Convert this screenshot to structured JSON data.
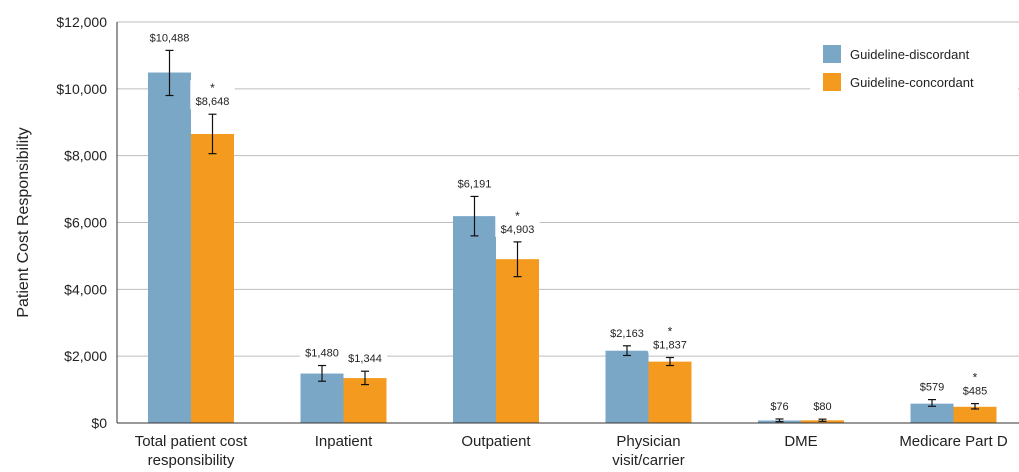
{
  "chart_data": {
    "type": "bar",
    "ylabel": "Patient Cost Responsibility",
    "ylim": [
      0,
      12000
    ],
    "yticks": [
      "$0",
      "$2,000",
      "$4,000",
      "$6,000",
      "$8,000",
      "$10,000",
      "$12,000"
    ],
    "ytick_values": [
      0,
      2000,
      4000,
      6000,
      8000,
      10000,
      12000
    ],
    "grid": true,
    "legend_position": "top-right",
    "categories": [
      [
        "Total patient cost",
        "responsibility"
      ],
      [
        "Inpatient"
      ],
      [
        "Outpatient"
      ],
      [
        "Physician",
        "visit/carrier"
      ],
      [
        "DME"
      ],
      [
        "Medicare Part D"
      ]
    ],
    "series": [
      {
        "name": "Guideline-discordant",
        "color": "#7BA7C7",
        "values": [
          10488,
          1480,
          6191,
          2163,
          76,
          579
        ],
        "labels": [
          "$10,488",
          "$1,480",
          "$6,191",
          "$2,163",
          "$76",
          "$579"
        ],
        "error_low": [
          9800,
          1250,
          5600,
          2020,
          40,
          500
        ],
        "error_high": [
          11150,
          1720,
          6780,
          2310,
          120,
          700
        ],
        "significance": [
          "",
          "",
          "",
          "",
          "",
          ""
        ]
      },
      {
        "name": "Guideline-concordant",
        "color": "#F39A1F",
        "values": [
          8648,
          1344,
          4903,
          1837,
          80,
          485
        ],
        "labels": [
          "$8,648",
          "$1,344",
          "$4,903",
          "$1,837",
          "$80",
          "$485"
        ],
        "error_low": [
          8060,
          1150,
          4380,
          1720,
          50,
          420
        ],
        "error_high": [
          9240,
          1550,
          5420,
          1960,
          115,
          580
        ],
        "significance": [
          "*",
          "",
          "*",
          "*",
          "",
          "*"
        ]
      }
    ]
  }
}
